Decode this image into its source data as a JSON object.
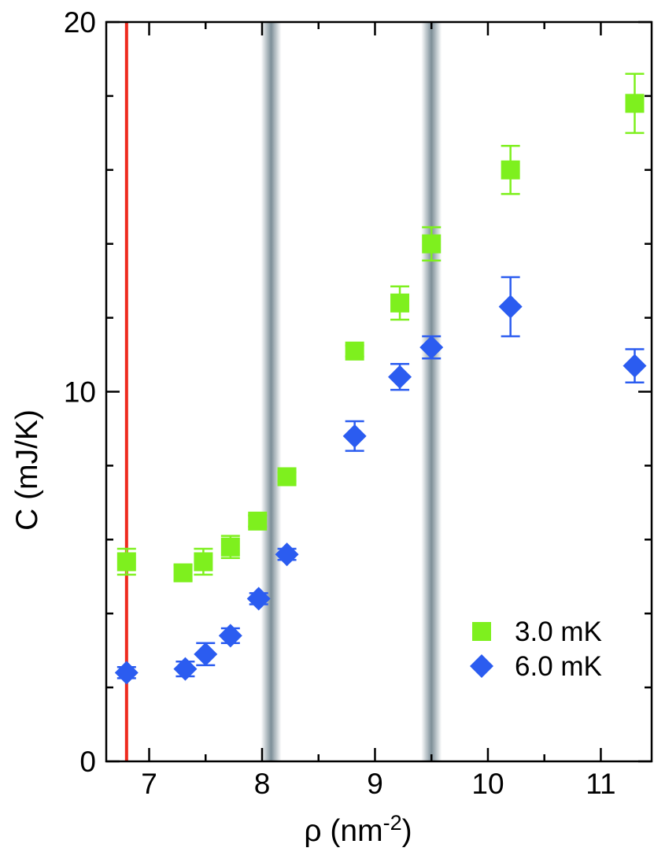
{
  "chart_data": {
    "type": "scatter",
    "title": "",
    "xlabel": "ρ  (nm",
    "xlabel_sup": "-2",
    "xlabel_close": ")",
    "ylabel": "C  (mJ/K)",
    "xlim": [
      6.62,
      11.45
    ],
    "ylim": [
      0,
      20
    ],
    "x_ticks": [
      7,
      8,
      9,
      10,
      11
    ],
    "x_tick_labels": [
      "7",
      "8",
      "9",
      "10",
      "11"
    ],
    "x_minor_ticks": [
      7.5,
      8.5,
      9.5,
      10.5
    ],
    "y_ticks": [
      0,
      10,
      20
    ],
    "y_tick_labels": [
      "0",
      "10",
      "20"
    ],
    "y_minor_ticks": [
      2,
      4,
      6,
      8,
      12,
      14,
      16,
      18
    ],
    "grid": false,
    "legend_position": "bottom-right",
    "vertical_line": {
      "x": 6.8,
      "color": "#ee2a1e"
    },
    "shaded_bands": [
      {
        "x": 8.08,
        "halfwidth": 0.09
      },
      {
        "x": 9.5,
        "halfwidth": 0.09
      }
    ],
    "series": [
      {
        "name": "3.0 mK",
        "marker": "square",
        "color": "#7ef01e",
        "points": [
          {
            "x": 6.8,
            "y": 5.4,
            "err": 0.35
          },
          {
            "x": 7.3,
            "y": 5.1,
            "err": 0.2
          },
          {
            "x": 7.48,
            "y": 5.4,
            "err": 0.35
          },
          {
            "x": 7.72,
            "y": 5.8,
            "err": 0.3
          },
          {
            "x": 7.96,
            "y": 6.5,
            "err": 0.15
          },
          {
            "x": 8.22,
            "y": 7.7,
            "err": 0.12
          },
          {
            "x": 8.82,
            "y": 11.1,
            "err": 0.15
          },
          {
            "x": 9.22,
            "y": 12.4,
            "err": 0.45
          },
          {
            "x": 9.5,
            "y": 14.0,
            "err": 0.45
          },
          {
            "x": 10.2,
            "y": 16.0,
            "err": 0.65
          },
          {
            "x": 11.3,
            "y": 17.8,
            "err": 0.8
          }
        ]
      },
      {
        "name": "6.0 mK",
        "marker": "diamond",
        "color": "#2b5cf0",
        "points": [
          {
            "x": 6.8,
            "y": 2.4,
            "err": 0.15
          },
          {
            "x": 7.32,
            "y": 2.5,
            "err": 0.2
          },
          {
            "x": 7.5,
            "y": 2.9,
            "err": 0.3
          },
          {
            "x": 7.72,
            "y": 3.4,
            "err": 0.2
          },
          {
            "x": 7.97,
            "y": 4.4,
            "err": 0.15
          },
          {
            "x": 8.22,
            "y": 5.6,
            "err": 0.15
          },
          {
            "x": 8.82,
            "y": 8.8,
            "err": 0.4
          },
          {
            "x": 9.22,
            "y": 10.4,
            "err": 0.35
          },
          {
            "x": 9.5,
            "y": 11.2,
            "err": 0.3
          },
          {
            "x": 10.2,
            "y": 12.3,
            "err": 0.8
          },
          {
            "x": 11.3,
            "y": 10.7,
            "err": 0.45
          }
        ]
      }
    ]
  }
}
